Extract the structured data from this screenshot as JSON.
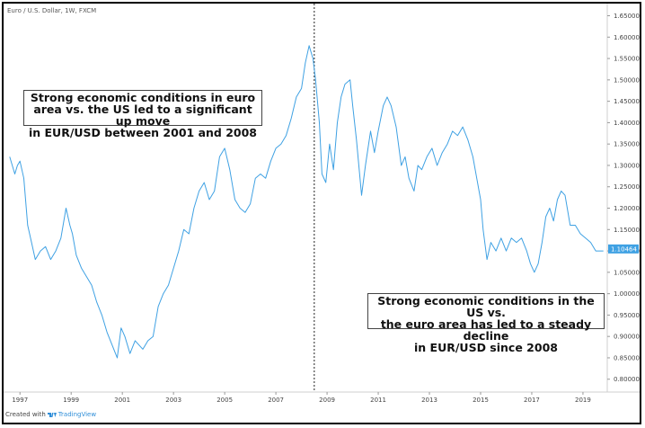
{
  "symbol_label": "Euro / U.S. Dollar, 1W, FXCM",
  "annotation_left": "Strong economic conditions in euro\narea vs. the US led to a significant up move\nin EUR/USD between 2001 and 2008",
  "annotation_right": "Strong economic conditions in the US vs.\nthe euro area has led to a steady decline\nin EUR/USD since 2008",
  "footer": {
    "created_with": "Created with",
    "brand": "TradingView"
  },
  "colors": {
    "series": "#3fa1e3",
    "price_tag": "#3fa1e3",
    "vline": "#222222",
    "axis_text": "#444444"
  },
  "chart_data": {
    "type": "line",
    "xlabel": "",
    "ylabel": "",
    "ylim": [
      0.77,
      1.67
    ],
    "xlim": [
      1996.5,
      2019.95
    ],
    "y_ticks": [
      "0.80000",
      "0.85000",
      "0.90000",
      "0.95000",
      "1.00000",
      "1.05000",
      "1.10000",
      "1.15000",
      "1.20000",
      "1.25000",
      "1.30000",
      "1.35000",
      "1.40000",
      "1.45000",
      "1.50000",
      "1.55000",
      "1.60000",
      "1.65000"
    ],
    "x_ticks": [
      "1997",
      "1999",
      "2001",
      "2003",
      "2005",
      "2007",
      "2009",
      "2011",
      "2013",
      "2015",
      "2017",
      "2019"
    ],
    "last_price": "1.10464",
    "vertical_marker_x": 2008.5,
    "series": [
      {
        "x": [
          1996.6,
          1996.8,
          1996.9,
          1997.0,
          1997.15,
          1997.3,
          1997.45,
          1997.6,
          1997.8,
          1998.0,
          1998.2,
          1998.4,
          1998.6,
          1998.8,
          1998.95,
          1999.05,
          1999.2,
          1999.4,
          1999.6,
          1999.8,
          2000.0,
          2000.2,
          2000.4,
          2000.6,
          2000.8,
          2000.95,
          2001.1,
          2001.3,
          2001.5,
          2001.65,
          2001.8,
          2002.0,
          2002.2,
          2002.4,
          2002.6,
          2002.8,
          2003.0,
          2003.2,
          2003.4,
          2003.6,
          2003.8,
          2004.0,
          2004.2,
          2004.4,
          2004.6,
          2004.8,
          2005.0,
          2005.2,
          2005.4,
          2005.6,
          2005.8,
          2006.0,
          2006.2,
          2006.4,
          2006.6,
          2006.8,
          2007.0,
          2007.2,
          2007.4,
          2007.6,
          2007.8,
          2008.0,
          2008.15,
          2008.3,
          2008.45,
          2008.55,
          2008.7,
          2008.8,
          2008.95,
          2009.1,
          2009.25,
          2009.4,
          2009.55,
          2009.7,
          2009.9,
          2010.0,
          2010.15,
          2010.35,
          2010.5,
          2010.7,
          2010.85,
          2011.0,
          2011.2,
          2011.35,
          2011.5,
          2011.7,
          2011.9,
          2012.05,
          2012.2,
          2012.4,
          2012.55,
          2012.7,
          2012.9,
          2013.1,
          2013.3,
          2013.5,
          2013.7,
          2013.9,
          2014.1,
          2014.3,
          2014.5,
          2014.7,
          2014.85,
          2015.0,
          2015.1,
          2015.25,
          2015.4,
          2015.6,
          2015.8,
          2016.0,
          2016.2,
          2016.4,
          2016.6,
          2016.8,
          2016.95,
          2017.1,
          2017.25,
          2017.4,
          2017.55,
          2017.7,
          2017.85,
          2018.0,
          2018.15,
          2018.3,
          2018.5,
          2018.7,
          2018.9,
          2019.1,
          2019.3,
          2019.5,
          2019.65,
          2019.8
        ],
        "y": [
          1.32,
          1.28,
          1.3,
          1.31,
          1.27,
          1.16,
          1.12,
          1.08,
          1.1,
          1.11,
          1.08,
          1.1,
          1.13,
          1.2,
          1.16,
          1.14,
          1.09,
          1.06,
          1.04,
          1.02,
          0.98,
          0.95,
          0.91,
          0.88,
          0.85,
          0.92,
          0.9,
          0.86,
          0.89,
          0.88,
          0.87,
          0.89,
          0.9,
          0.97,
          1.0,
          1.02,
          1.06,
          1.1,
          1.15,
          1.14,
          1.2,
          1.24,
          1.26,
          1.22,
          1.24,
          1.32,
          1.34,
          1.29,
          1.22,
          1.2,
          1.19,
          1.21,
          1.27,
          1.28,
          1.27,
          1.31,
          1.34,
          1.35,
          1.37,
          1.41,
          1.46,
          1.48,
          1.54,
          1.58,
          1.55,
          1.5,
          1.4,
          1.28,
          1.26,
          1.35,
          1.29,
          1.4,
          1.46,
          1.49,
          1.5,
          1.44,
          1.36,
          1.23,
          1.3,
          1.38,
          1.33,
          1.38,
          1.44,
          1.46,
          1.44,
          1.39,
          1.3,
          1.32,
          1.27,
          1.24,
          1.3,
          1.29,
          1.32,
          1.34,
          1.3,
          1.33,
          1.35,
          1.38,
          1.37,
          1.39,
          1.36,
          1.32,
          1.27,
          1.22,
          1.15,
          1.08,
          1.12,
          1.1,
          1.13,
          1.1,
          1.13,
          1.12,
          1.13,
          1.1,
          1.07,
          1.05,
          1.07,
          1.12,
          1.18,
          1.2,
          1.17,
          1.22,
          1.24,
          1.23,
          1.16,
          1.16,
          1.14,
          1.13,
          1.12,
          1.1,
          1.1,
          1.1
        ]
      }
    ]
  }
}
